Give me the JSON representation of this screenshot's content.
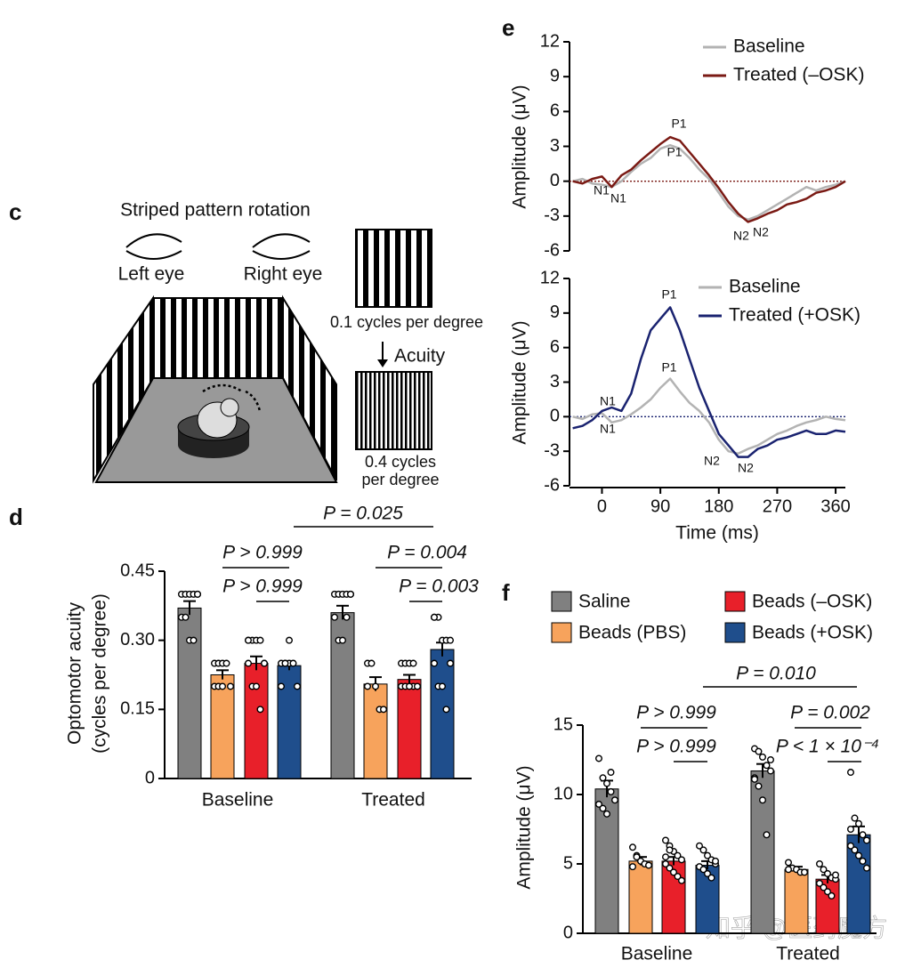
{
  "diagram": {
    "panel": "c",
    "title": "Striped pattern rotation",
    "left_eye": "Left eye",
    "right_eye": "Right eye",
    "low_frequency": "0.1 cycles per degree",
    "acuity": "Acuity",
    "high_frequency": [
      "0.4 cycles",
      "per degree"
    ]
  },
  "watermark": "知乎 @医药魔方",
  "chart_data": [
    {
      "type": "bar",
      "panel": "d",
      "ylabel": [
        "Optomotor acuity",
        "(cycles per degree)"
      ],
      "categories": [
        "Baseline",
        "Treated"
      ],
      "series": [
        {
          "color": "#808080",
          "values": [
            0.37,
            0.36
          ],
          "errors": [
            0.015,
            0.015
          ],
          "points": [
            [
              0.4,
              0.4,
              0.4,
              0.4,
              0.4,
              0.35,
              0.35,
              0.3,
              0.3,
              0.4
            ],
            [
              0.4,
              0.4,
              0.4,
              0.4,
              0.4,
              0.35,
              0.3,
              0.3,
              0.35,
              0.4
            ]
          ]
        },
        {
          "color": "#f7a35c",
          "values": [
            0.225,
            0.205
          ],
          "errors": [
            0.01,
            0.015
          ],
          "points": [
            [
              0.25,
              0.25,
              0.25,
              0.25,
              0.2,
              0.2,
              0.2,
              0.2
            ],
            [
              0.25,
              0.25,
              0.2,
              0.15,
              0.15,
              0.2
            ]
          ]
        },
        {
          "color": "#e8202a",
          "values": [
            0.25,
            0.215
          ],
          "errors": [
            0.015,
            0.01
          ],
          "points": [
            [
              0.3,
              0.3,
              0.3,
              0.3,
              0.25,
              0.25,
              0.2,
              0.2,
              0.15,
              0.25,
              0.3
            ],
            [
              0.25,
              0.25,
              0.25,
              0.2,
              0.2,
              0.2,
              0.2,
              0.2,
              0.25
            ]
          ]
        },
        {
          "color": "#1f4e8c",
          "values": [
            0.245,
            0.28
          ],
          "errors": [
            0.01,
            0.015
          ],
          "points": [
            [
              0.25,
              0.25,
              0.25,
              0.25,
              0.2,
              0.2,
              0.25,
              0.3
            ],
            [
              0.35,
              0.35,
              0.3,
              0.3,
              0.25,
              0.25,
              0.2,
              0.2,
              0.15,
              0.3,
              0.35
            ]
          ]
        }
      ],
      "ylim": [
        0,
        0.45
      ],
      "yticks": [
        0,
        0.15,
        {
          "value": 0.3,
          "label": "0.30"
        },
        0.45
      ],
      "annotations": [
        "P = 0.025",
        "P > 0.999",
        "P > 0.999",
        "P = 0.004",
        "P = 0.003"
      ]
    },
    {
      "type": "line",
      "panel": "e",
      "ylabel": "Amplitude (μV)",
      "x": [
        -45,
        -30,
        -15,
        0,
        15,
        30,
        45,
        60,
        75,
        90,
        105,
        120,
        135,
        150,
        165,
        180,
        195,
        210,
        225,
        240,
        255,
        270,
        285,
        300,
        315,
        330,
        345,
        360,
        375
      ],
      "series": [
        {
          "name": "Baseline",
          "color": "#b3b3b3",
          "values": [
            0,
            0.2,
            -0.2,
            -0.3,
            -0.5,
            0,
            0.8,
            1.5,
            2,
            2.8,
            3.1,
            2.8,
            2,
            1,
            0.2,
            -1,
            -2.2,
            -3,
            -3.3,
            -3,
            -2.5,
            -2,
            -1.5,
            -1,
            -0.5,
            -0.8,
            -0.5,
            -0.3,
            0
          ]
        },
        {
          "name": "Treated (–OSK)",
          "color": "#7a1a14",
          "values": [
            0,
            -0.2,
            0.2,
            0.4,
            -0.5,
            0.5,
            1,
            1.8,
            2.5,
            3.2,
            3.8,
            3.5,
            2.5,
            1.5,
            0.5,
            -0.6,
            -1.8,
            -2.8,
            -3.5,
            -3.2,
            -2.8,
            -2.5,
            -2,
            -1.8,
            -1.5,
            -1,
            -0.8,
            -0.5,
            0
          ]
        }
      ],
      "xlim": [
        -50,
        375
      ],
      "ylim": [
        -6,
        12
      ],
      "yticks": [
        -6,
        -3,
        0,
        3,
        6,
        9,
        12
      ],
      "annotations": [
        "P1",
        "P1",
        "N1",
        "N1",
        "N2",
        "N2"
      ]
    },
    {
      "type": "line",
      "ylabel": "Amplitude (μV)",
      "xlabel": "Time (ms)",
      "x": [
        -45,
        -30,
        -15,
        0,
        15,
        30,
        45,
        60,
        75,
        90,
        105,
        120,
        135,
        150,
        165,
        180,
        195,
        210,
        225,
        240,
        255,
        270,
        285,
        300,
        315,
        330,
        345,
        360,
        375
      ],
      "series": [
        {
          "name": "Baseline",
          "color": "#b3b3b3",
          "values": [
            0,
            -0.2,
            0.2,
            0.3,
            -0.5,
            -0.3,
            0.2,
            0.8,
            1.5,
            2.5,
            3.3,
            2.2,
            1.2,
            0.5,
            -0.5,
            -2,
            -3,
            -3.2,
            -2.8,
            -2.5,
            -2,
            -1.5,
            -1.2,
            -0.8,
            -0.5,
            -0.3,
            0,
            -0.2,
            -0.3
          ]
        },
        {
          "name": "Treated (+OSK)",
          "color": "#1a2370",
          "values": [
            -1,
            -0.8,
            -0.3,
            0.5,
            0.8,
            0.5,
            2,
            5,
            7.5,
            8.5,
            9.5,
            7.5,
            5,
            2.5,
            0.5,
            -1.5,
            -2.5,
            -3.5,
            -3.5,
            -2.8,
            -2.5,
            -2,
            -1.8,
            -1.5,
            -1.2,
            -1.5,
            -1.5,
            -1.2,
            -1.3
          ]
        }
      ],
      "xlim": [
        -50,
        375
      ],
      "xticks": [
        0,
        90,
        180,
        270,
        360
      ],
      "ylim": [
        -6,
        12
      ],
      "yticks": [
        -6,
        -3,
        0,
        3,
        6,
        9,
        12
      ],
      "annotations": [
        "P1",
        "P1",
        "N1",
        "N1",
        "N2",
        "N2"
      ]
    },
    {
      "type": "bar",
      "panel": "f",
      "ylabel": "Amplitude (μV)",
      "categories": [
        "Baseline",
        "Treated"
      ],
      "series": [
        {
          "name": "Saline",
          "color": "#808080",
          "values": [
            10.4,
            11.7
          ],
          "errors": [
            0.6,
            0.5
          ],
          "points": [
            [
              12.6,
              11.2,
              10.8,
              10.2,
              9.6,
              9.3,
              9,
              8.6,
              11.6
            ],
            [
              13.3,
              13.1,
              12.7,
              12.1,
              11.7,
              11.2,
              10.6,
              9.6,
              7.1,
              12.5,
              11.1
            ]
          ]
        },
        {
          "name": "Beads (PBS)",
          "color": "#f7a35c",
          "values": [
            5.2,
            4.6
          ],
          "errors": [
            0.3,
            0.2
          ],
          "points": [
            [
              6.2,
              5.6,
              5.2,
              5,
              4.9,
              4.8,
              5.5
            ],
            [
              5.1,
              4.7,
              4.6,
              4.4,
              4.4,
              4.6
            ]
          ]
        },
        {
          "name": "Beads (–OSK)",
          "color": "#e8202a",
          "values": [
            5.2,
            3.9
          ],
          "errors": [
            0.3,
            0.3
          ],
          "points": [
            [
              6.7,
              6.3,
              5.9,
              5.6,
              5.3,
              5,
              4.7,
              4.4,
              4.1,
              3.8,
              5.5,
              6
            ],
            [
              5,
              4.6,
              4.3,
              4,
              3.9,
              3.6,
              3.3,
              3,
              2.7,
              4.2
            ]
          ]
        },
        {
          "name": "Beads (+OSK)",
          "color": "#1f4e8c",
          "values": [
            4.9,
            7.1
          ],
          "errors": [
            0.3,
            0.6
          ],
          "points": [
            [
              6.3,
              6,
              5.6,
              5.3,
              5,
              4.8,
              4.6,
              4.3,
              4,
              5.2
            ],
            [
              11.6,
              8.3,
              7.9,
              7.1,
              6.7,
              6.3,
              6,
              5.6,
              5.2,
              4.7,
              7.5
            ]
          ]
        }
      ],
      "ylim": [
        0,
        15
      ],
      "yticks": [
        0,
        5,
        10,
        15
      ],
      "annotations": [
        "P = 0.010",
        "P > 0.999",
        "P > 0.999",
        "P = 0.002",
        "P < 1 × 10⁻⁴"
      ]
    }
  ]
}
